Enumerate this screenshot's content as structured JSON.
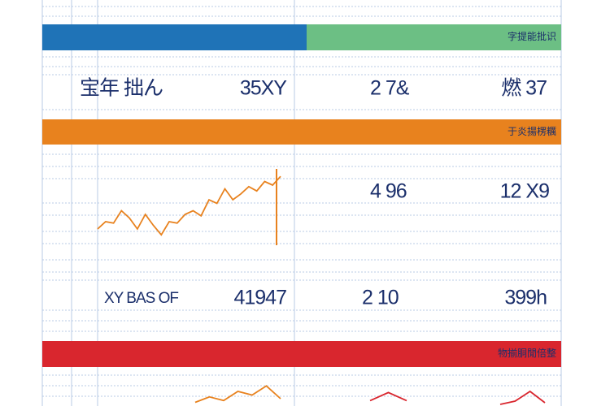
{
  "bands": [
    {
      "label": "字提能批识"
    },
    {
      "label": "于炎揚楞糲"
    },
    {
      "label": "物揃胴閒倍整"
    }
  ],
  "rows": [
    {
      "cells": [
        "宝年 拙ん",
        "35XY",
        "2 7&",
        "燃 37"
      ]
    },
    {
      "cells": [
        "4 96",
        "12 X9"
      ]
    },
    {
      "cells": [
        "XY BAS OF",
        "41947",
        "2 10",
        "399h"
      ]
    }
  ],
  "sparklines": [
    {
      "color": "#e8821e",
      "ylim": [
        0,
        100
      ],
      "values": [
        20,
        30,
        28,
        45,
        35,
        20,
        40,
        25,
        12,
        30,
        28,
        40,
        45,
        38,
        60,
        55,
        75,
        60,
        68,
        78,
        72,
        85,
        80,
        92
      ]
    },
    {
      "color": "#e8821e",
      "ylim": [
        0,
        100
      ],
      "values": [
        10,
        25,
        15,
        40,
        30,
        55,
        20
      ]
    },
    {
      "color": "#d9262e",
      "ylim": [
        0,
        100
      ],
      "values": [
        5,
        35,
        5
      ]
    },
    {
      "color": "#d9262e",
      "ylim": [
        0,
        100
      ],
      "values": [
        5,
        15,
        45,
        10
      ]
    }
  ]
}
